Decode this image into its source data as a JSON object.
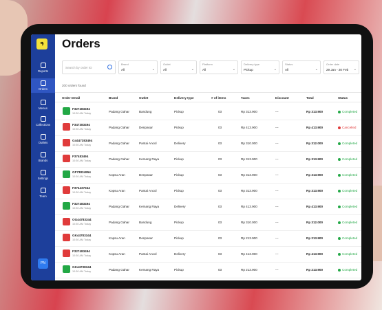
{
  "sidebar": {
    "nav": [
      "Reports",
      "Orders",
      "Menus",
      "Collections",
      "Outlets",
      "Brands",
      "Settings",
      "Team"
    ],
    "active": 1,
    "avatar": "PN"
  },
  "header": {
    "title": "Orders"
  },
  "search": {
    "placeholder": "Search by order ID"
  },
  "filters": [
    {
      "label": "Brand",
      "value": "All"
    },
    {
      "label": "Outlet",
      "value": "All"
    },
    {
      "label": "Platform",
      "value": "All"
    },
    {
      "label": "Delivery type",
      "value": "Pickup"
    },
    {
      "label": "Status",
      "value": "All"
    },
    {
      "label": "Order date",
      "value": "29 Jan - 20 Feb"
    }
  ],
  "count": "200 orders found",
  "table": {
    "columns": [
      "Order Detail",
      "Brand",
      "Outlet",
      "Delivery type",
      "# of items",
      "Taxes",
      "Discount",
      "Total",
      "Status"
    ],
    "rows": [
      {
        "id": "F327483494",
        "time": "10:30 AM Today",
        "logo_color": "#22a845",
        "brand": "Padang Gahar",
        "outlet": "Bandung",
        "delivery": "Pickup",
        "items": "03",
        "taxes": "Rp 313.900",
        "discount": "---",
        "total": "Rp 313.900",
        "status": "Completed",
        "status_color": "#22a845"
      },
      {
        "id": "F347383494",
        "time": "10:30 AM Today",
        "logo_color": "#e03b3b",
        "brand": "Padang Gahar",
        "outlet": "Denpasar",
        "delivery": "Pickup",
        "items": "03",
        "taxes": "Rp 413.900",
        "discount": "---",
        "total": "Rp 413.900",
        "status": "Cancelled",
        "status_color": "#e03b3b"
      },
      {
        "id": "G4447383494",
        "time": "10:30 AM Today",
        "logo_color": "#e03b3b",
        "brand": "Padang Gahar",
        "outlet": "Pantai Ancol",
        "delivery": "Delivery",
        "items": "03",
        "taxes": "Rp 310.000",
        "discount": "---",
        "total": "Rp 312.000",
        "status": "Completed",
        "status_color": "#22a845"
      },
      {
        "id": "F37483494",
        "time": "10:30 AM Today",
        "logo_color": "#e03b3b",
        "brand": "Padang Gahar",
        "outlet": "Kemang Raya",
        "delivery": "Pickup",
        "items": "03",
        "taxes": "Rp 313.900",
        "discount": "---",
        "total": "Rp 313.900",
        "status": "Completed",
        "status_color": "#22a845"
      },
      {
        "id": "GF73834954",
        "time": "10:30 AM Today",
        "logo_color": "#22a845",
        "brand": "Kopsu Aran",
        "outlet": "Denpasar",
        "delivery": "Pickup",
        "items": "03",
        "taxes": "Rp 313.900",
        "discount": "---",
        "total": "Rp 313.900",
        "status": "Completed",
        "status_color": "#22a845"
      },
      {
        "id": "F374437344",
        "time": "10:30 AM Today",
        "logo_color": "#e03b3b",
        "brand": "Kopsu Aran",
        "outlet": "Pantai Ancol",
        "delivery": "Pickup",
        "items": "03",
        "taxes": "Rp 313.900",
        "discount": "---",
        "total": "Rp 313.900",
        "status": "Completed",
        "status_color": "#22a845"
      },
      {
        "id": "F327483494",
        "time": "10:30 AM Today",
        "logo_color": "#22a845",
        "brand": "Padang Gahar",
        "outlet": "Kemang Raya",
        "delivery": "Delivery",
        "items": "03",
        "taxes": "Rp 413.900",
        "discount": "---",
        "total": "Rp 413.900",
        "status": "Completed",
        "status_color": "#22a845"
      },
      {
        "id": "OG44783344",
        "time": "10:30 AM Today",
        "logo_color": "#e03b3b",
        "brand": "Padang Gahar",
        "outlet": "Bandung",
        "delivery": "Pickup",
        "items": "03",
        "taxes": "Rp 310.000",
        "discount": "---",
        "total": "Rp 312.000",
        "status": "Completed",
        "status_color": "#22a845"
      },
      {
        "id": "GK44783344",
        "time": "10:30 AM Today",
        "logo_color": "#e03b3b",
        "brand": "Kopsu Aran",
        "outlet": "Denpasar",
        "delivery": "Pickup",
        "items": "03",
        "taxes": "Rp 213.900",
        "discount": "---",
        "total": "Rp 213.900",
        "status": "Completed",
        "status_color": "#22a845"
      },
      {
        "id": "F327483494",
        "time": "10:30 AM Today",
        "logo_color": "#e03b3b",
        "brand": "Kopsu Aran",
        "outlet": "Pantai Ancol",
        "delivery": "Delivery",
        "items": "03",
        "taxes": "Rp 413.900",
        "discount": "---",
        "total": "Rp 413.900",
        "status": "Completed",
        "status_color": "#22a845"
      },
      {
        "id": "GK44738344",
        "time": "10:30 AM Today",
        "logo_color": "#22a845",
        "brand": "Padang Gahar",
        "outlet": "Kemang Raya",
        "delivery": "Pickup",
        "items": "03",
        "taxes": "Rp 213.900",
        "discount": "---",
        "total": "Rp 213.900",
        "status": "Completed",
        "status_color": "#22a845"
      }
    ]
  }
}
